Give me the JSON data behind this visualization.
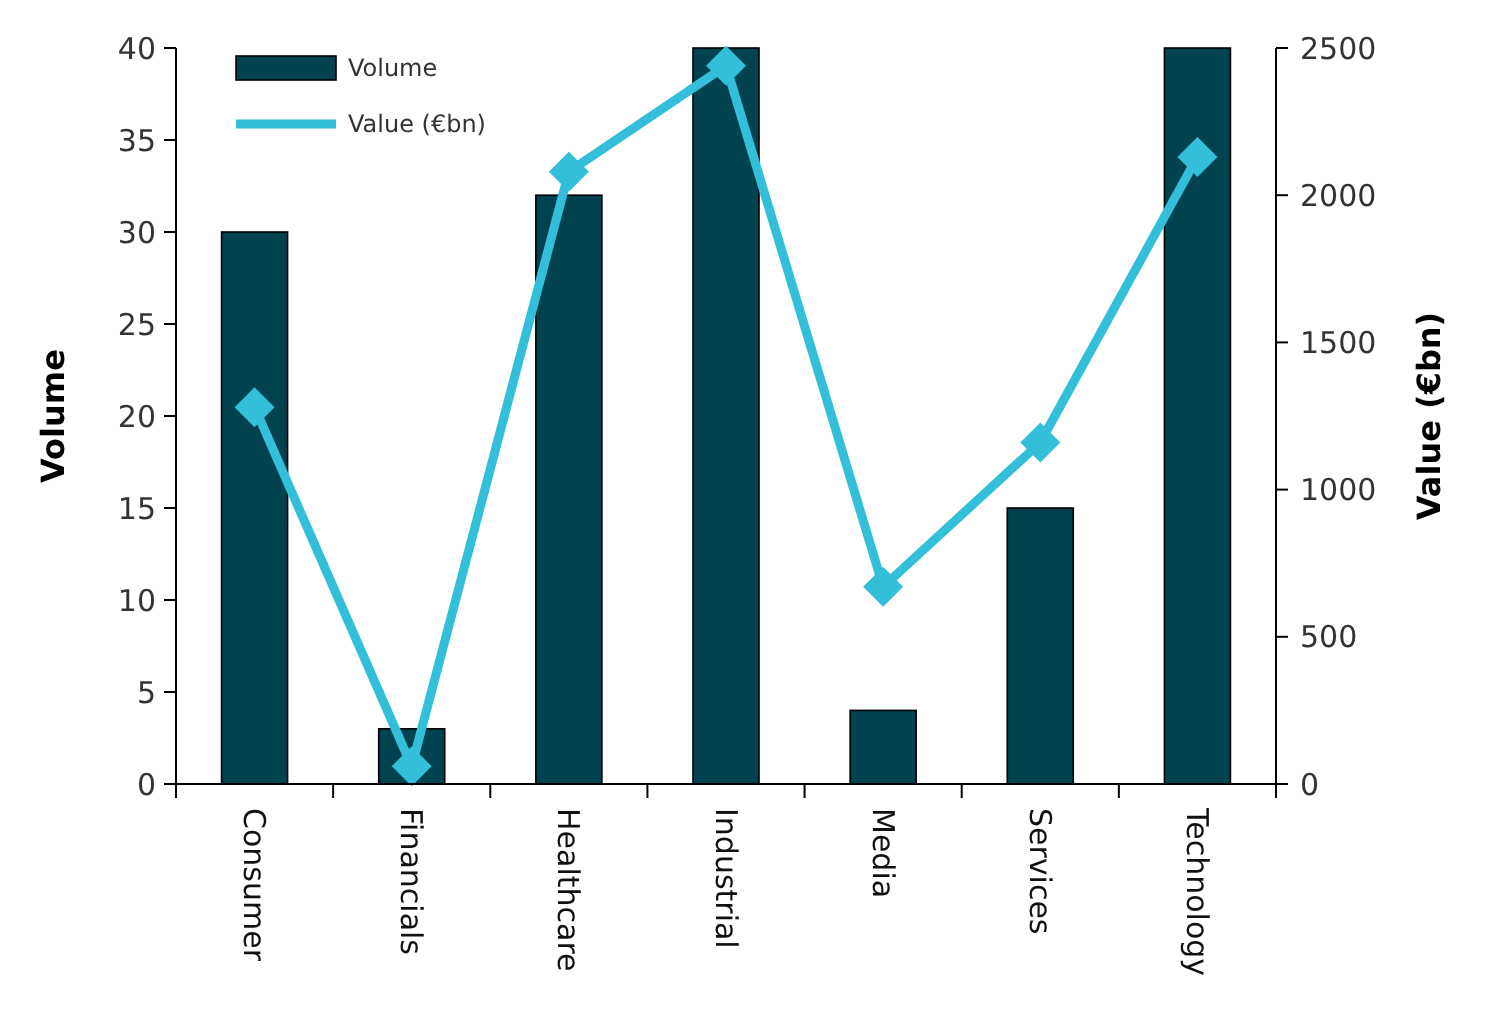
{
  "chart_data": {
    "type": "bar",
    "xlabel": null,
    "ylabel": "Volume",
    "y2label": "Value (€bn)",
    "categories": [
      "Consumer",
      "Financials",
      "Healthcare",
      "Industrial",
      "Media",
      "Services",
      "Technology"
    ],
    "series": [
      {
        "name": "Volume",
        "color": "#00424f",
        "values": [
          30,
          3,
          32,
          40,
          4,
          15,
          40
        ]
      },
      {
        "name": "Value (€bn)",
        "type": "line",
        "axis": "y2",
        "color": "#33bfd9",
        "marker": "diamond",
        "values": [
          1280,
          60,
          2080,
          2440,
          670,
          1160,
          2130
        ]
      }
    ],
    "ylim": [
      0,
      40
    ],
    "yticks": [
      0,
      5,
      10,
      15,
      20,
      25,
      30,
      35,
      40
    ],
    "y2lim": [
      0,
      2500
    ],
    "y2ticks": [
      0,
      500,
      1000,
      1500,
      2000,
      2500
    ],
    "grid": false,
    "legend": "top left"
  }
}
